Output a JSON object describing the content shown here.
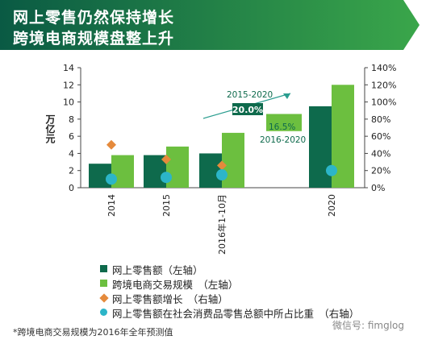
{
  "title": {
    "line1": "网上零售仍然保持增长",
    "line2": "跨境电商规模盘整上升"
  },
  "colors": {
    "banner_dark": "#0a5a44",
    "banner_light": "#3aa64a",
    "retail": "#0e6a4c",
    "crossborder": "#6cbf3f",
    "growth": "#e58a3c",
    "share": "#2cb5c8"
  },
  "chart_data": {
    "type": "bar",
    "categories": [
      "2014",
      "2015",
      "2016年1-10月",
      "2020"
    ],
    "ylabel": "万亿元",
    "ylim": [
      0,
      14
    ],
    "yticks": [
      "0",
      "2",
      "4",
      "6",
      "8",
      "10",
      "12",
      "14"
    ],
    "y2lim": [
      0,
      140
    ],
    "y2ticks": [
      "0%",
      "20%",
      "40%",
      "60%",
      "80%",
      "100%",
      "120%",
      "140%"
    ],
    "series": [
      {
        "name": "网上零售额（左轴）",
        "kind": "bar",
        "axis": "left",
        "values": [
          2.8,
          3.8,
          4.0,
          9.5
        ]
      },
      {
        "name": "跨境电商交易规模　（左轴）",
        "kind": "bar",
        "axis": "left",
        "values": [
          3.8,
          4.8,
          6.4,
          12.0
        ]
      },
      {
        "name": "网上零售额增长　（右轴）",
        "kind": "diamond",
        "axis": "right",
        "values": [
          50,
          33,
          26,
          null
        ]
      },
      {
        "name": "网上零售额在社会消费品零售总额中所占比重　（右轴）",
        "kind": "circle",
        "axis": "right",
        "values": [
          10,
          12,
          15,
          20
        ]
      }
    ],
    "annotations": [
      {
        "range": "2015-2020",
        "value": "20.0%"
      },
      {
        "range": "2016-2020",
        "value": "16.5%"
      }
    ],
    "extra_bar": {
      "series": "跨境电商交易规模",
      "value": 8.6
    }
  },
  "footnote": "*跨境电商交易规模为2016年全年预测值",
  "watermark": "微信号: fimglog"
}
